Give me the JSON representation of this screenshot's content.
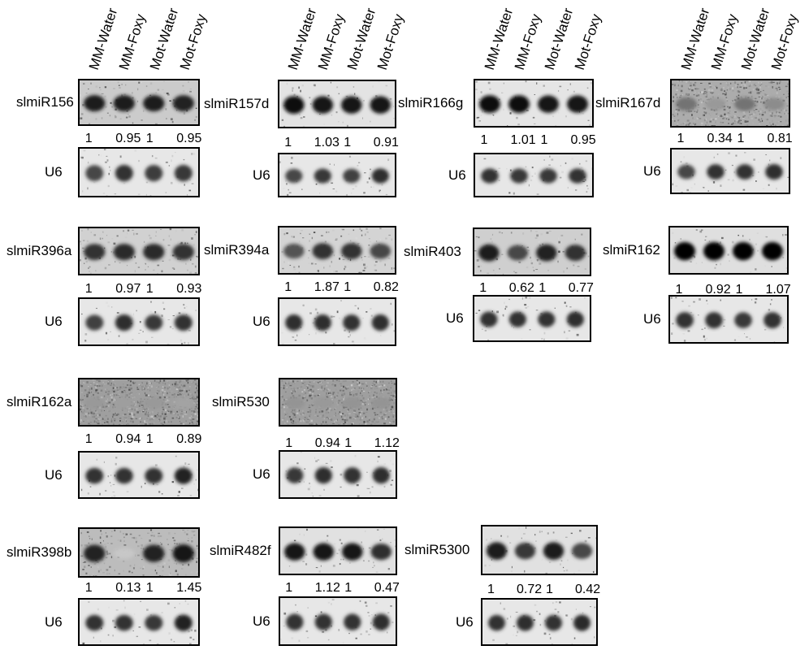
{
  "lanes": [
    "MM-Water",
    "MM-Foxy",
    "Mot-Water",
    "Mot-Foxy"
  ],
  "loading_control": "U6",
  "panels": [
    {
      "mirna": "slmiR156",
      "ratios": [
        "1",
        "0.95",
        "1",
        "0.95"
      ],
      "mirna_intensity": [
        0.88,
        0.88,
        0.88,
        0.86
      ],
      "u6_intensity": [
        0.72,
        0.8,
        0.76,
        0.78
      ],
      "mirna_noise": 0.12,
      "mirna_bg": "#c9c9c9"
    },
    {
      "mirna": "slmiR157d",
      "ratios": [
        "1",
        "1.03",
        "1",
        "0.91"
      ],
      "mirna_intensity": [
        0.95,
        0.92,
        0.92,
        0.92
      ],
      "u6_intensity": [
        0.72,
        0.78,
        0.75,
        0.82
      ],
      "mirna_noise": 0.06,
      "mirna_bg": "#e2e2e2"
    },
    {
      "mirna": "slmiR166g",
      "ratios": [
        "1",
        "1.01",
        "1",
        "0.95"
      ],
      "mirna_intensity": [
        0.95,
        0.95,
        0.93,
        0.92
      ],
      "u6_intensity": [
        0.8,
        0.78,
        0.78,
        0.8
      ],
      "mirna_noise": 0.06,
      "mirna_bg": "#e4e4e4"
    },
    {
      "mirna": "slmiR167d",
      "ratios": [
        "1",
        "0.34",
        "1",
        "0.81"
      ],
      "mirna_intensity": [
        0.55,
        0.4,
        0.55,
        0.45
      ],
      "u6_intensity": [
        0.72,
        0.8,
        0.8,
        0.82
      ],
      "mirna_noise": 0.55,
      "mirna_bg": "#a8a8a8"
    },
    {
      "mirna": "slmiR396a",
      "ratios": [
        "1",
        "0.97",
        "1",
        "0.93"
      ],
      "mirna_intensity": [
        0.8,
        0.84,
        0.84,
        0.8
      ],
      "u6_intensity": [
        0.75,
        0.82,
        0.78,
        0.8
      ],
      "mirna_noise": 0.14,
      "mirna_bg": "#cfcfcf"
    },
    {
      "mirna": "slmiR394a",
      "ratios": [
        "1",
        "1.87",
        "1",
        "0.82"
      ],
      "mirna_intensity": [
        0.68,
        0.8,
        0.8,
        0.72
      ],
      "u6_intensity": [
        0.82,
        0.82,
        0.8,
        0.82
      ],
      "mirna_noise": 0.14,
      "mirna_bg": "#d2d2d2"
    },
    {
      "mirna": "slmiR403",
      "ratios": [
        "1",
        "0.62",
        "1",
        "0.77"
      ],
      "mirna_intensity": [
        0.88,
        0.72,
        0.86,
        0.8
      ],
      "u6_intensity": [
        0.8,
        0.8,
        0.8,
        0.82
      ],
      "mirna_noise": 0.1,
      "mirna_bg": "#cdcdcd"
    },
    {
      "mirna": "slmiR162",
      "ratios": [
        "1",
        "0.92",
        "1",
        "1.07"
      ],
      "mirna_intensity": [
        1.0,
        1.0,
        1.0,
        1.0
      ],
      "u6_intensity": [
        0.8,
        0.8,
        0.78,
        0.8
      ],
      "mirna_noise": 0.05,
      "mirna_bg": "#dedede"
    },
    {
      "mirna": "slmiR162a",
      "ratios": [
        "1",
        "0.94",
        "1",
        "0.89"
      ],
      "mirna_intensity": [
        0.4,
        0.38,
        0.4,
        0.36
      ],
      "u6_intensity": [
        0.8,
        0.8,
        0.8,
        0.86
      ],
      "mirna_noise": 0.7,
      "mirna_bg": "#9a9a9a"
    },
    {
      "mirna": "slmiR530",
      "ratios": [
        "1",
        "0.94",
        "1",
        "1.12"
      ],
      "mirna_intensity": [
        0.42,
        0.4,
        0.42,
        0.42
      ],
      "u6_intensity": [
        0.78,
        0.82,
        0.8,
        0.82
      ],
      "mirna_noise": 0.7,
      "mirna_bg": "#9a9a9a"
    },
    {
      "mirna": "slmiR398b",
      "ratios": [
        "1",
        "0.13",
        "1",
        "1.45"
      ],
      "mirna_intensity": [
        0.86,
        0.22,
        0.86,
        0.92
      ],
      "u6_intensity": [
        0.8,
        0.8,
        0.78,
        0.86
      ],
      "mirna_noise": 0.22,
      "mirna_bg": "#b9b9b9"
    },
    {
      "mirna": "slmiR482f",
      "ratios": [
        "1",
        "1.12",
        "1",
        "0.47"
      ],
      "mirna_intensity": [
        0.92,
        0.92,
        0.92,
        0.82
      ],
      "u6_intensity": [
        0.8,
        0.8,
        0.8,
        0.82
      ],
      "mirna_noise": 0.06,
      "mirna_bg": "#e0e0e0"
    },
    {
      "mirna": "slmiR5300",
      "ratios": [
        "1",
        "0.72",
        "1",
        "0.42"
      ],
      "mirna_intensity": [
        0.88,
        0.78,
        0.88,
        0.72
      ],
      "u6_intensity": [
        0.8,
        0.82,
        0.8,
        0.84
      ],
      "mirna_noise": 0.06,
      "mirna_bg": "#e0e0e0"
    }
  ]
}
